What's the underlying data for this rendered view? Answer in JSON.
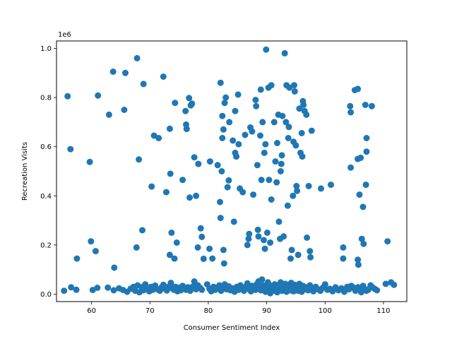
{
  "chart_data": {
    "type": "scatter",
    "title": "",
    "xlabel": "Consumer Sentiment Index",
    "ylabel": "Recreation Visits",
    "y_offset_label": "1e6",
    "xlim": [
      54,
      114
    ],
    "ylim": [
      -30000,
      1030000
    ],
    "x_ticks": [
      60,
      70,
      80,
      90,
      100,
      110
    ],
    "x_tick_labels": [
      "60",
      "70",
      "80",
      "90",
      "100",
      "110"
    ],
    "y_ticks": [
      0,
      200000,
      400000,
      600000,
      800000,
      1000000
    ],
    "y_tick_labels": [
      "0.0",
      "0.2",
      "0.4",
      "0.6",
      "0.8",
      "1.0"
    ],
    "grid": false,
    "marker_color": "#1f77b4",
    "points": [
      [
        55.9,
        805000
      ],
      [
        56.4,
        590000
      ],
      [
        57.5,
        145000
      ],
      [
        59.7,
        538000
      ],
      [
        59.9,
        215000
      ],
      [
        60.7,
        175000
      ],
      [
        61.1,
        808000
      ],
      [
        63.0,
        730000
      ],
      [
        63.9,
        108000
      ],
      [
        63.7,
        905000
      ],
      [
        65.8,
        900000
      ],
      [
        65.6,
        750000
      ],
      [
        67.8,
        960000
      ],
      [
        67.7,
        190000
      ],
      [
        68.1,
        548000
      ],
      [
        68.7,
        260000
      ],
      [
        68.9,
        855000
      ],
      [
        70.3,
        438000
      ],
      [
        70.7,
        645000
      ],
      [
        71.5,
        635000
      ],
      [
        72.3,
        885000
      ],
      [
        72.8,
        415000
      ],
      [
        73.4,
        673000
      ],
      [
        73.5,
        490000
      ],
      [
        73.4,
        160000
      ],
      [
        73.7,
        250000
      ],
      [
        74.2,
        145000
      ],
      [
        74.3,
        778000
      ],
      [
        74.6,
        210000
      ],
      [
        75.6,
        465000
      ],
      [
        76.2,
        690000
      ],
      [
        76.1,
        745000
      ],
      [
        76.3,
        672000
      ],
      [
        76.7,
        798000
      ],
      [
        76.8,
        393000
      ],
      [
        77.0,
        768000
      ],
      [
        77.2,
        775000
      ],
      [
        77.6,
        557000
      ],
      [
        77.9,
        400000
      ],
      [
        78.3,
        530000
      ],
      [
        78.2,
        190000
      ],
      [
        78.7,
        268000
      ],
      [
        78.9,
        233000
      ],
      [
        79.2,
        144000
      ],
      [
        80.2,
        185000
      ],
      [
        80.3,
        540000
      ],
      [
        80.7,
        145000
      ],
      [
        81.6,
        525000
      ],
      [
        82.1,
        860000
      ],
      [
        82.0,
        375000
      ],
      [
        82.1,
        310000
      ],
      [
        82.3,
        500000
      ],
      [
        82.4,
        725000
      ],
      [
        82.6,
        670000
      ],
      [
        82.4,
        635000
      ],
      [
        82.6,
        180000
      ],
      [
        82.7,
        125000
      ],
      [
        82.8,
        778000
      ],
      [
        83.0,
        800000
      ],
      [
        83.3,
        435000
      ],
      [
        83.5,
        463000
      ],
      [
        83.6,
        700000
      ],
      [
        84.2,
        625000
      ],
      [
        84.4,
        295000
      ],
      [
        84.6,
        745000
      ],
      [
        84.6,
        575000
      ],
      [
        84.8,
        560000
      ],
      [
        85.1,
        812000
      ],
      [
        85.2,
        610000
      ],
      [
        85.4,
        430000
      ],
      [
        85.9,
        415000
      ],
      [
        86.3,
        648000
      ],
      [
        86.7,
        200000
      ],
      [
        86.9,
        225000
      ],
      [
        87.0,
        245000
      ],
      [
        87.2,
        678000
      ],
      [
        87.5,
        662000
      ],
      [
        87.7,
        405000
      ],
      [
        88.1,
        790000
      ],
      [
        88.2,
        765000
      ],
      [
        88.4,
        525000
      ],
      [
        88.5,
        262000
      ],
      [
        88.6,
        235000
      ],
      [
        88.9,
        645000
      ],
      [
        89.0,
        832000
      ],
      [
        89.1,
        465000
      ],
      [
        89.3,
        700000
      ],
      [
        89.5,
        220000
      ],
      [
        89.6,
        575000
      ],
      [
        89.7,
        185000
      ],
      [
        89.8,
        610000
      ],
      [
        89.9,
        995000
      ],
      [
        90.1,
        250000
      ],
      [
        90.3,
        840000
      ],
      [
        90.4,
        465000
      ],
      [
        90.6,
        210000
      ],
      [
        90.8,
        385000
      ],
      [
        90.8,
        850000
      ],
      [
        91.3,
        700000
      ],
      [
        91.5,
        540000
      ],
      [
        91.7,
        455000
      ],
      [
        91.8,
        615000
      ],
      [
        92.0,
        730000
      ],
      [
        92.1,
        295000
      ],
      [
        92.3,
        225000
      ],
      [
        92.4,
        500000
      ],
      [
        92.5,
        530000
      ],
      [
        92.6,
        565000
      ],
      [
        92.7,
        725000
      ],
      [
        92.9,
        235000
      ],
      [
        93.1,
        980000
      ],
      [
        93.3,
        700000
      ],
      [
        93.4,
        850000
      ],
      [
        93.6,
        360000
      ],
      [
        93.7,
        635000
      ],
      [
        93.8,
        680000
      ],
      [
        93.9,
        840000
      ],
      [
        94.1,
        145000
      ],
      [
        94.3,
        180000
      ],
      [
        94.5,
        400000
      ],
      [
        94.6,
        620000
      ],
      [
        94.7,
        850000
      ],
      [
        94.8,
        825000
      ],
      [
        95.0,
        605000
      ],
      [
        95.1,
        440000
      ],
      [
        95.2,
        420000
      ],
      [
        95.4,
        160000
      ],
      [
        95.6,
        755000
      ],
      [
        95.8,
        575000
      ],
      [
        96.0,
        655000
      ],
      [
        96.1,
        560000
      ],
      [
        96.2,
        785000
      ],
      [
        96.3,
        770000
      ],
      [
        96.5,
        745000
      ],
      [
        96.8,
        730000
      ],
      [
        96.9,
        230000
      ],
      [
        97.2,
        440000
      ],
      [
        97.4,
        175000
      ],
      [
        97.5,
        150000
      ],
      [
        97.7,
        665000
      ],
      [
        99.3,
        430000
      ],
      [
        101.0,
        445000
      ],
      [
        103.1,
        190000
      ],
      [
        103.1,
        145000
      ],
      [
        104.3,
        765000
      ],
      [
        104.4,
        740000
      ],
      [
        104.4,
        515000
      ],
      [
        105.1,
        830000
      ],
      [
        105.6,
        835000
      ],
      [
        105.6,
        550000
      ],
      [
        105.6,
        140000
      ],
      [
        105.7,
        120000
      ],
      [
        105.9,
        405000
      ],
      [
        106.1,
        555000
      ],
      [
        106.3,
        225000
      ],
      [
        106.5,
        355000
      ],
      [
        106.6,
        205000
      ],
      [
        106.9,
        770000
      ],
      [
        107.1,
        580000
      ],
      [
        107.0,
        445000
      ],
      [
        107.1,
        635000
      ],
      [
        108.0,
        765000
      ],
      [
        110.7,
        215000
      ],
      [
        55.3,
        14000
      ],
      [
        56.5,
        28000
      ],
      [
        57.4,
        18000
      ],
      [
        60.2,
        17000
      ],
      [
        61.0,
        26000
      ],
      [
        62.8,
        27000
      ],
      [
        63.8,
        16000
      ],
      [
        64.7,
        24000
      ],
      [
        65.4,
        17000
      ],
      [
        66.1,
        10000
      ],
      [
        66.7,
        22000
      ],
      [
        67.2,
        30000
      ],
      [
        67.5,
        14000
      ],
      [
        67.9,
        36000
      ],
      [
        68.2,
        8000
      ],
      [
        68.6,
        28000
      ],
      [
        68.9,
        16000
      ],
      [
        69.2,
        40000
      ],
      [
        69.6,
        22000
      ],
      [
        69.9,
        12000
      ],
      [
        70.2,
        30000
      ],
      [
        70.5,
        18000
      ],
      [
        70.9,
        35000
      ],
      [
        71.3,
        20000
      ],
      [
        71.7,
        14000
      ],
      [
        72.0,
        28000
      ],
      [
        72.3,
        38000
      ],
      [
        72.6,
        22000
      ],
      [
        72.9,
        15000
      ],
      [
        73.3,
        32000
      ],
      [
        73.6,
        46000
      ],
      [
        73.8,
        24000
      ],
      [
        74.1,
        18000
      ],
      [
        74.4,
        30000
      ],
      [
        74.7,
        12000
      ],
      [
        75.0,
        26000
      ],
      [
        75.3,
        16000
      ],
      [
        75.6,
        34000
      ],
      [
        75.9,
        22000
      ],
      [
        76.2,
        18000
      ],
      [
        76.5,
        28000
      ],
      [
        76.9,
        14000
      ],
      [
        77.3,
        30000
      ],
      [
        77.6,
        52000
      ],
      [
        77.9,
        20000
      ],
      [
        78.2,
        36000
      ],
      [
        78.6,
        26000
      ],
      [
        78.9,
        18000
      ],
      [
        79.8,
        40000
      ],
      [
        80.2,
        22000
      ],
      [
        80.5,
        12000
      ],
      [
        80.9,
        30000
      ],
      [
        81.2,
        18000
      ],
      [
        81.6,
        26000
      ],
      [
        81.9,
        36000
      ],
      [
        82.2,
        14000
      ],
      [
        82.5,
        28000
      ],
      [
        82.8,
        40000
      ],
      [
        83.1,
        20000
      ],
      [
        83.5,
        32000
      ],
      [
        83.8,
        16000
      ],
      [
        84.1,
        24000
      ],
      [
        84.5,
        10000
      ],
      [
        84.9,
        30000
      ],
      [
        85.2,
        18000
      ],
      [
        85.5,
        36000
      ],
      [
        85.8,
        24000
      ],
      [
        86.1,
        14000
      ],
      [
        86.4,
        30000
      ],
      [
        86.7,
        44000
      ],
      [
        87.0,
        20000
      ],
      [
        87.3,
        12000
      ],
      [
        87.5,
        34000
      ],
      [
        87.8,
        26000
      ],
      [
        88.1,
        18000
      ],
      [
        88.3,
        40000
      ],
      [
        88.6,
        52000
      ],
      [
        88.8,
        28000
      ],
      [
        89.0,
        16000
      ],
      [
        89.2,
        60000
      ],
      [
        89.4,
        36000
      ],
      [
        89.6,
        22000
      ],
      [
        89.8,
        10000
      ],
      [
        90.0,
        30000
      ],
      [
        90.2,
        48000
      ],
      [
        90.4,
        18000
      ],
      [
        90.6,
        4000
      ],
      [
        90.8,
        34000
      ],
      [
        91.0,
        24000
      ],
      [
        91.2,
        14000
      ],
      [
        91.4,
        40000
      ],
      [
        91.6,
        28000
      ],
      [
        91.8,
        8000
      ],
      [
        92.0,
        36000
      ],
      [
        92.2,
        20000
      ],
      [
        92.4,
        48000
      ],
      [
        92.6,
        14000
      ],
      [
        92.8,
        30000
      ],
      [
        93.0,
        22000
      ],
      [
        93.2,
        42000
      ],
      [
        93.4,
        10000
      ],
      [
        93.6,
        34000
      ],
      [
        93.8,
        24000
      ],
      [
        94.0,
        16000
      ],
      [
        94.2,
        46000
      ],
      [
        94.4,
        28000
      ],
      [
        94.6,
        12000
      ],
      [
        94.8,
        38000
      ],
      [
        95.0,
        22000
      ],
      [
        95.2,
        30000
      ],
      [
        95.4,
        14000
      ],
      [
        95.6,
        42000
      ],
      [
        95.8,
        24000
      ],
      [
        96.0,
        10000
      ],
      [
        96.2,
        34000
      ],
      [
        96.5,
        20000
      ],
      [
        96.8,
        28000
      ],
      [
        97.1,
        16000
      ],
      [
        97.4,
        36000
      ],
      [
        97.7,
        24000
      ],
      [
        98.0,
        12000
      ],
      [
        98.4,
        30000
      ],
      [
        98.8,
        20000
      ],
      [
        99.2,
        14000
      ],
      [
        99.6,
        26000
      ],
      [
        100.0,
        40000
      ],
      [
        100.4,
        18000
      ],
      [
        100.8,
        22000
      ],
      [
        101.3,
        12000
      ],
      [
        101.8,
        28000
      ],
      [
        102.3,
        16000
      ],
      [
        102.8,
        24000
      ],
      [
        103.3,
        10000
      ],
      [
        103.8,
        30000
      ],
      [
        104.1,
        20000
      ],
      [
        104.5,
        34000
      ],
      [
        104.9,
        26000
      ],
      [
        105.2,
        14000
      ],
      [
        105.6,
        28000
      ],
      [
        105.9,
        20000
      ],
      [
        106.2,
        8000
      ],
      [
        106.5,
        34000
      ],
      [
        106.8,
        22000
      ],
      [
        107.1,
        14000
      ],
      [
        107.4,
        18000
      ],
      [
        107.8,
        36000
      ],
      [
        108.1,
        28000
      ],
      [
        108.5,
        22000
      ],
      [
        108.9,
        16000
      ],
      [
        110.4,
        42000
      ],
      [
        111.3,
        48000
      ],
      [
        111.8,
        38000
      ]
    ]
  }
}
